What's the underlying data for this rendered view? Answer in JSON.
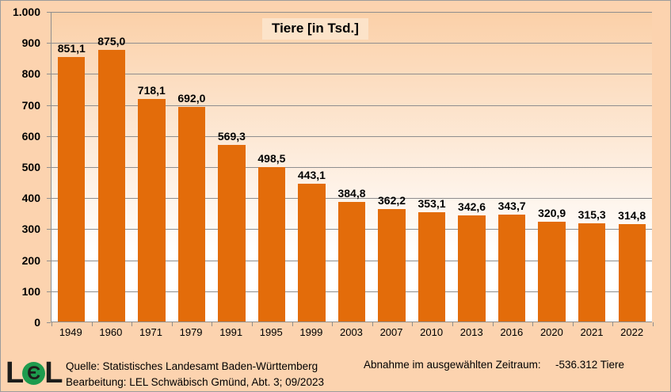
{
  "window": {
    "background_color": "#FCD3AF",
    "border_color": "#9c9c9c"
  },
  "chart_data": {
    "type": "bar",
    "title": "Tiere [in Tsd.]",
    "categories": [
      "1949",
      "1960",
      "1971",
      "1979",
      "1991",
      "1995",
      "1999",
      "2003",
      "2007",
      "2010",
      "2013",
      "2016",
      "2020",
      "2021",
      "2022"
    ],
    "values": [
      851.1,
      875.0,
      718.1,
      692.0,
      569.3,
      498.5,
      443.1,
      384.8,
      362.2,
      353.1,
      342.6,
      343.7,
      320.9,
      315.3,
      314.8
    ],
    "value_labels": [
      "851,1",
      "875,0",
      "718,1",
      "692,0",
      "569,3",
      "498,5",
      "443,1",
      "384,8",
      "362,2",
      "353,1",
      "342,6",
      "343,7",
      "320,9",
      "315,3",
      "314,8"
    ],
    "y_ticks": [
      "1.000",
      "900",
      "800",
      "700",
      "600",
      "500",
      "400",
      "300",
      "200",
      "100",
      "0"
    ],
    "ylim": [
      0,
      1000
    ],
    "grid": true,
    "legend": "none",
    "xlabel": "",
    "ylabel": "",
    "bar_color": "#E36C0A",
    "gridline_color": "#8E8E8E",
    "plot_gradient_top": "#FBD0A8",
    "plot_gradient_bottom": "#FFFFFF"
  },
  "footer": {
    "logo": {
      "letter_left": "L",
      "letter_center": "Є",
      "letter_right": "L",
      "circle_color": "#1E9B4E"
    },
    "source_line": "Quelle: Statistisches Landesamt Baden-Württemberg",
    "editing_line": "Bearbeitung: LEL Schwäbisch Gmünd, Abt. 3; 09/2023",
    "decrease_label": "Abnahme im ausgewählten Zeitraum:",
    "decrease_value": "-536.312 Tiere"
  }
}
